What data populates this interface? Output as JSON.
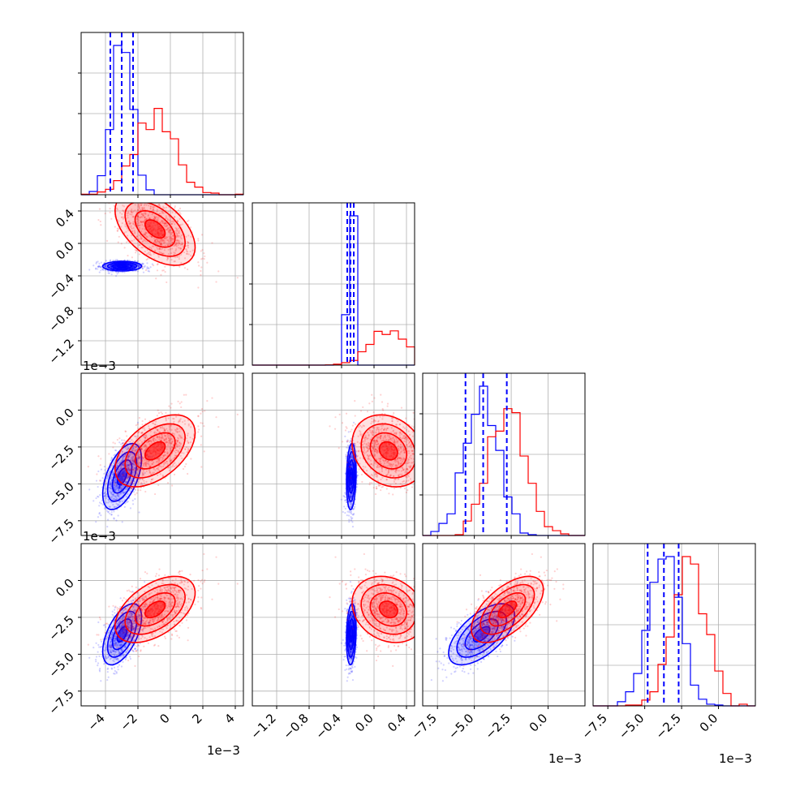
{
  "chart_data": {
    "type": "corner",
    "grid": true,
    "colors": {
      "series_a": "#0000ff",
      "series_b": "#ff0000",
      "grid": "#b0b0b0",
      "axes": "#000000"
    },
    "series": [
      {
        "color": "#0000ff",
        "mean": [
          -0.003,
          -0.00028,
          -0.0045,
          -0.0037
        ],
        "std": [
          0.0006,
          3e-05,
          0.0011,
          0.001
        ],
        "quantiles_dashed": [
          [
            -0.0037,
            -0.003,
            -0.0023
          ],
          [
            -0.00033,
            -0.00029,
            -0.00025
          ],
          [
            -0.0056,
            -0.0044,
            -0.0028
          ],
          [
            -0.0048,
            -0.0037,
            -0.0027
          ]
        ]
      },
      {
        "color": "#ff0000",
        "mean": [
          -0.001,
          0.00018,
          -0.0028,
          -0.002
        ],
        "std": [
          0.0012,
          0.00022,
          0.0012,
          0.0011
        ]
      }
    ],
    "axes": [
      {
        "range": [
          -0.0055,
          0.0045
        ],
        "ticks": [
          -0.004,
          -0.002,
          0.0,
          0.002,
          0.004
        ],
        "tick_labels": [
          "−4",
          "−2",
          "0",
          "2",
          "4"
        ],
        "offset_text": "1e−3"
      },
      {
        "range": [
          -0.0015,
          0.0005
        ],
        "ticks": [
          -0.0012,
          -0.0008,
          -0.0004,
          0.0,
          0.0004
        ],
        "tick_labels": [
          "−1.2",
          "−0.8",
          "−0.4",
          "0.0",
          "0.4"
        ],
        "offset_text": "1e−3"
      },
      {
        "range": [
          -0.0085,
          0.0025
        ],
        "ticks": [
          -0.0075,
          -0.005,
          -0.0025,
          0.0
        ],
        "tick_labels": [
          "−7.5",
          "−5.0",
          "−2.5",
          "0.0"
        ],
        "offset_text": "1e−3"
      },
      {
        "range": [
          -0.0085,
          0.0025
        ],
        "ticks": [
          -0.0075,
          -0.005,
          -0.0025,
          0.0
        ],
        "tick_labels": [
          "−7.5",
          "−5.0",
          "−2.5",
          "0.0"
        ],
        "offset_text": "1e−3"
      }
    ]
  }
}
